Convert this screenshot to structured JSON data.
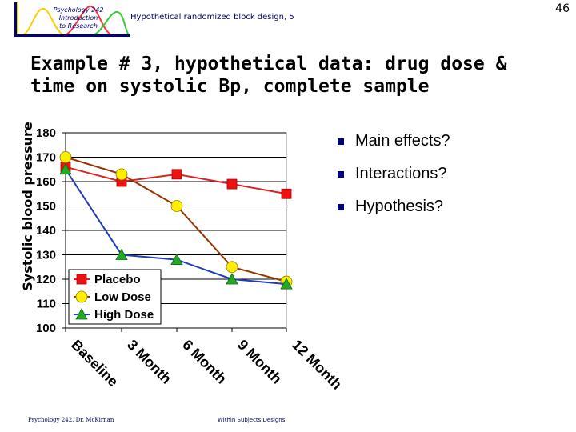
{
  "header": {
    "logo_lines": [
      "Psychology 242",
      "Introduction",
      "to Research"
    ],
    "title": "Hypothetical randomized block design, 5",
    "page_number": "46"
  },
  "slide": {
    "title": "Example # 3, hypothetical data: drug dose & time on systolic Bp, complete sample",
    "bullets": [
      "Main effects?",
      "Interactions?",
      "Hypothesis?"
    ]
  },
  "footer": {
    "left": "Psychology 242, Dr. McKirnan",
    "center": "Within Subjects Designs"
  },
  "colors": {
    "placebo": "#ee1111",
    "low_dose": "#ffee00",
    "high_dose": "#22aa22",
    "placebo_line": "#dd2222",
    "low_line": "#993300",
    "high_line": "#1f3dbf",
    "bullet": "#000080"
  },
  "chart_data": {
    "type": "line",
    "categories": [
      "Baseline",
      "3 Month",
      "6 Month",
      "9 Month",
      "12 Month"
    ],
    "ylabel": "Systolic blood pressure",
    "ylim": [
      100,
      180
    ],
    "yticks": [
      100,
      110,
      120,
      130,
      140,
      150,
      160,
      170,
      180
    ],
    "grid": true,
    "legend_position": "bottom-left",
    "series": [
      {
        "name": "Placebo",
        "marker": "square",
        "values": [
          166,
          160,
          163,
          159,
          155
        ]
      },
      {
        "name": "Low Dose",
        "marker": "circle",
        "values": [
          170,
          163,
          150,
          125,
          119
        ]
      },
      {
        "name": "High Dose",
        "marker": "triangle",
        "values": [
          165,
          130,
          128,
          120,
          118
        ]
      }
    ]
  }
}
